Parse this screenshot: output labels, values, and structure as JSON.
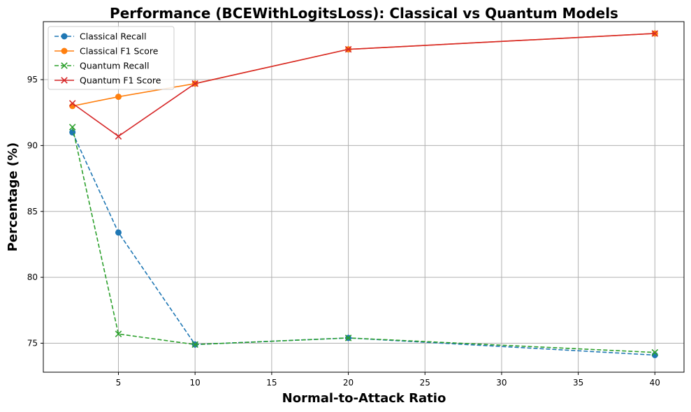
{
  "chart_data": {
    "type": "line",
    "title": "Performance (BCEWithLogitsLoss): Classical vs Quantum Models",
    "xlabel": "Normal-to-Attack Ratio",
    "ylabel": "Percentage (%)",
    "x": [
      2,
      5,
      10,
      20,
      40
    ],
    "xlim": [
      0.1,
      41.9
    ],
    "ylim": [
      72.8,
      99.4
    ],
    "xticks": [
      5,
      10,
      15,
      20,
      25,
      30,
      35,
      40
    ],
    "yticks": [
      75,
      80,
      85,
      90,
      95
    ],
    "grid": true,
    "legend_position": "upper left",
    "series": [
      {
        "name": "Classical Recall",
        "values": [
          91.0,
          83.4,
          74.9,
          75.4,
          74.1
        ],
        "color": "#1f77b4",
        "marker": "circle",
        "line": "dashed"
      },
      {
        "name": "Classical F1 Score",
        "values": [
          93.0,
          93.7,
          94.7,
          97.3,
          98.5
        ],
        "color": "#ff7f0e",
        "marker": "circle",
        "line": "solid"
      },
      {
        "name": "Quantum Recall",
        "values": [
          91.4,
          75.7,
          74.9,
          75.4,
          74.3
        ],
        "color": "#2ca02c",
        "marker": "x",
        "line": "dashed"
      },
      {
        "name": "Quantum F1 Score",
        "values": [
          93.2,
          90.7,
          94.7,
          97.3,
          98.5
        ],
        "color": "#d62728",
        "marker": "x",
        "line": "solid"
      }
    ]
  }
}
